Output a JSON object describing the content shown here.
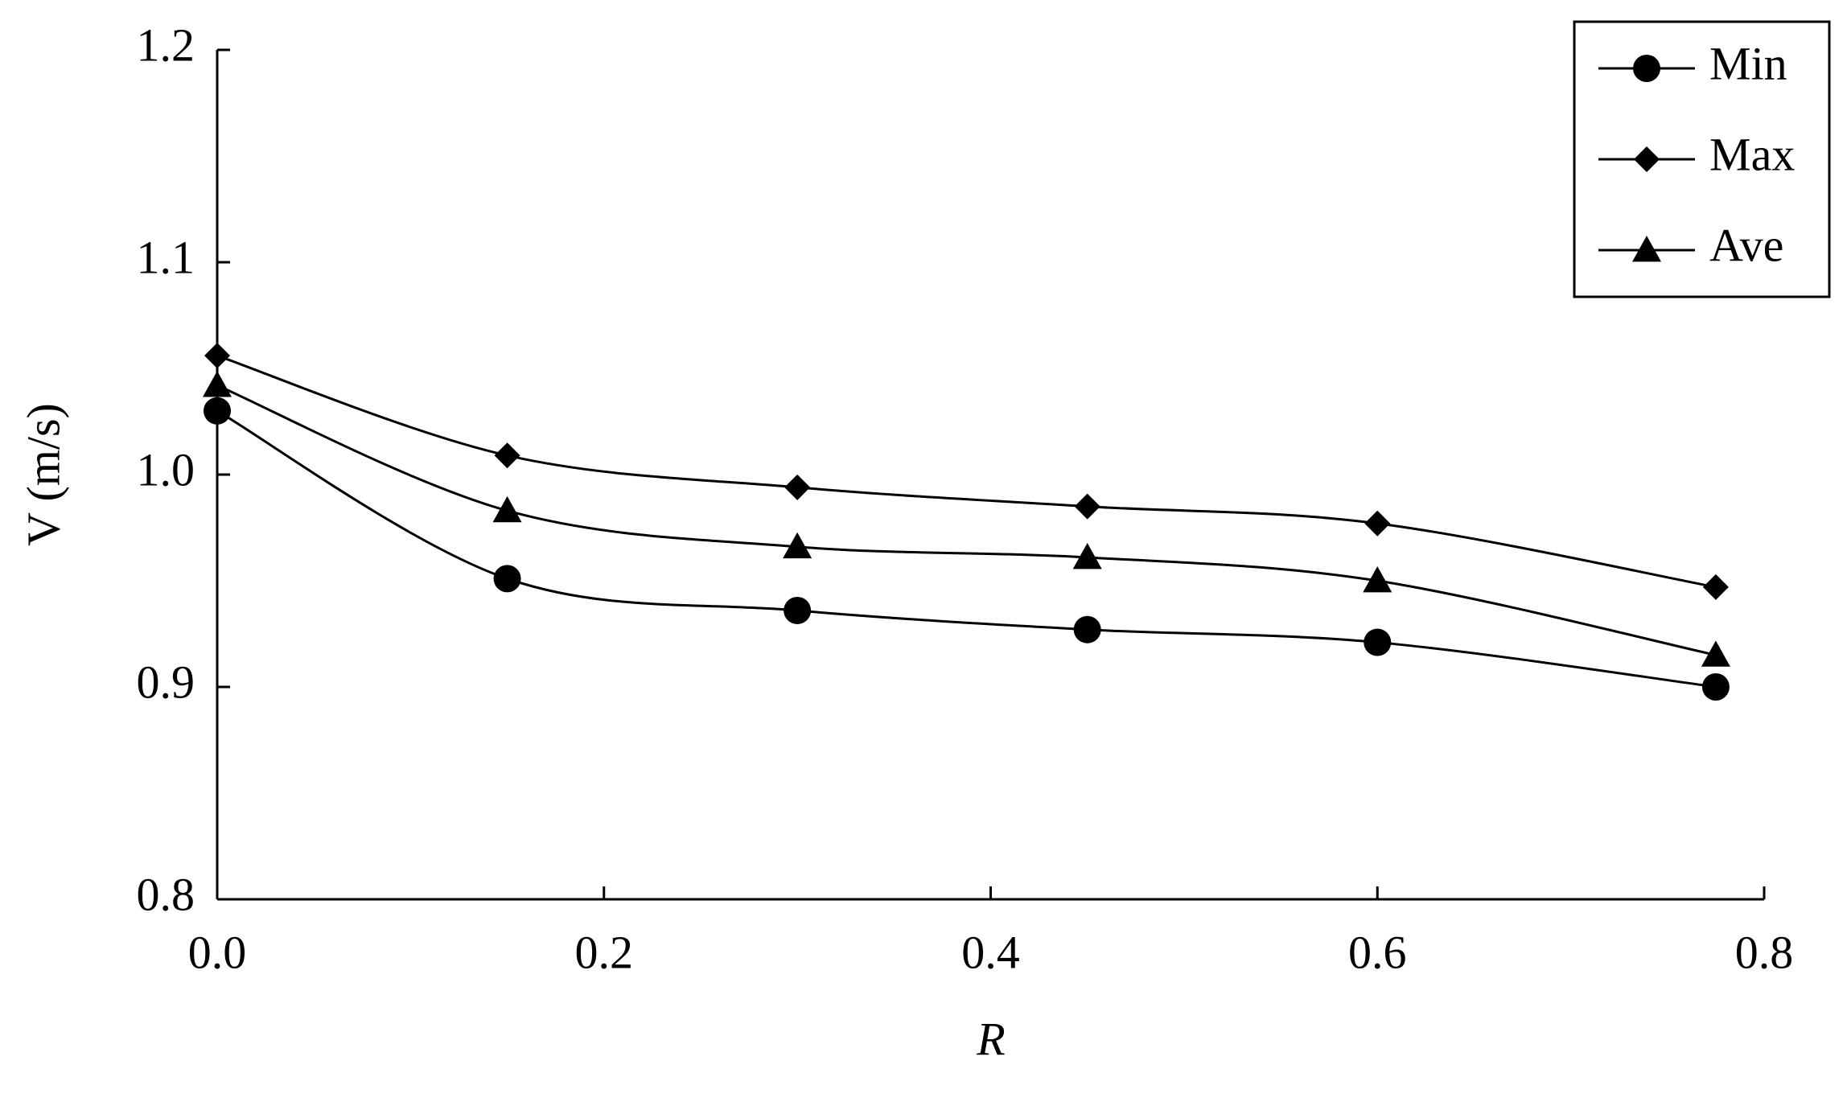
{
  "chart_data": {
    "type": "line",
    "x_label": "R",
    "y_label": "V (m/s)",
    "x": [
      0,
      0.15,
      0.3,
      0.45,
      0.6,
      0.775
    ],
    "series": [
      {
        "name": "Min",
        "color": "#000000",
        "marker": "circle",
        "values": [
          1.03,
          0.951,
          0.936,
          0.927,
          0.921,
          0.9
        ]
      },
      {
        "name": "Max",
        "color": "#000000",
        "marker": "diamond",
        "values": [
          1.056,
          1.009,
          0.994,
          0.985,
          0.977,
          0.947
        ]
      },
      {
        "name": "Ave",
        "color": "#000000",
        "marker": "triangle",
        "values": [
          1.042,
          0.983,
          0.966,
          0.961,
          0.95,
          0.915
        ]
      }
    ],
    "xlim": [
      0,
      0.8
    ],
    "xticks": [
      {
        "value": 0,
        "label": "0.0"
      },
      0.2,
      0.4,
      0.6,
      0.8
    ],
    "ylim": [
      0.8,
      1.2
    ],
    "yticks": [
      0.8,
      0.9,
      {
        "value": 1,
        "label": "1.0"
      },
      1.1,
      1.2
    ],
    "smooth": true,
    "legend": "top-right"
  }
}
